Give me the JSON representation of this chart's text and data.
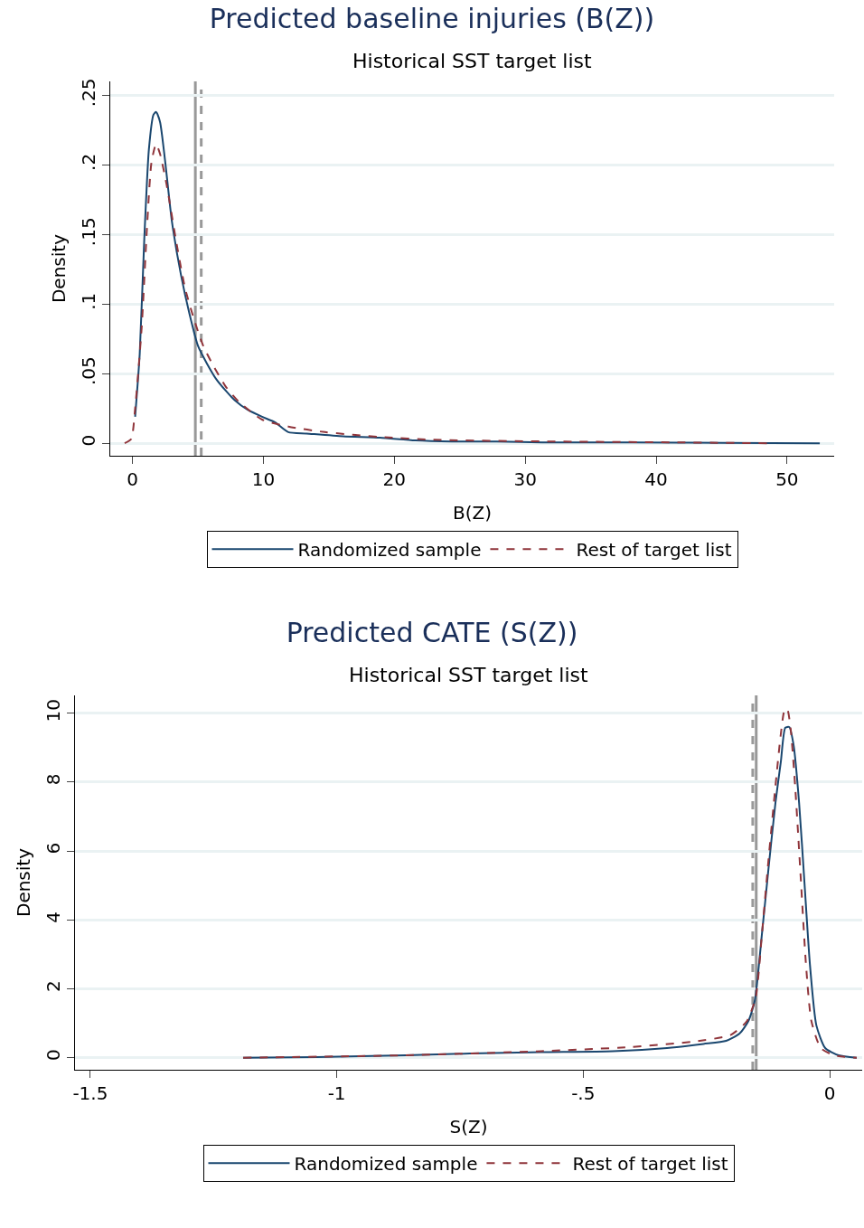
{
  "chart_data": [
    {
      "type": "line",
      "title": "Predicted baseline injuries (B(Z))",
      "subtitle": "Historical SST target list",
      "xlabel": "B(Z)",
      "ylabel": "Density",
      "xlim": [
        -1.7,
        53.6
      ],
      "xticks": [
        0,
        10,
        20,
        30,
        40,
        50
      ],
      "ylim": [
        -0.009,
        0.26
      ],
      "yticks": [
        {
          "value": 0,
          "label": "0"
        },
        {
          "value": 0.05,
          "label": ".05"
        },
        {
          "value": 0.1,
          "label": ".1"
        },
        {
          "value": 0.15,
          "label": ".15"
        },
        {
          "value": 0.2,
          "label": ".2"
        },
        {
          "value": 0.25,
          "label": ".25"
        }
      ],
      "grid": "y",
      "legend": "bottom",
      "marker": "none",
      "ref_lines": [
        {
          "axis": "x",
          "value": 4.8,
          "color": "#999999",
          "line_style": "solid"
        },
        {
          "axis": "x",
          "value": 5.25,
          "color": "#999999",
          "line_style": "dashed"
        }
      ],
      "series": [
        {
          "name": "Randomized sample",
          "color": "#1a476f",
          "line_style": "solid",
          "x": [
            0.2,
            0.55,
            0.9,
            1.25,
            1.6,
            1.8,
            2.1,
            2.5,
            3.0,
            3.7,
            4.35,
            5.0,
            5.7,
            6.4,
            7.1,
            7.8,
            8.8,
            9.9,
            10.9,
            11.9,
            13.3,
            16.1,
            18.9,
            21.6,
            24.4,
            27.8,
            31.3,
            38.2,
            45.1,
            52.5
          ],
          "values": [
            0.019,
            0.064,
            0.147,
            0.211,
            0.236,
            0.238,
            0.231,
            0.202,
            0.16,
            0.121,
            0.093,
            0.07,
            0.057,
            0.046,
            0.038,
            0.031,
            0.024,
            0.019,
            0.015,
            0.008,
            0.007,
            0.005,
            0.004,
            0.002,
            0.0013,
            0.0013,
            0.0006,
            0.0006,
            0.0003,
            0
          ]
        },
        {
          "name": "Rest of target list",
          "color": "#90353b",
          "line_style": "dashed",
          "x": [
            -0.6,
            -0.1,
            0.2,
            0.7,
            1.1,
            1.45,
            1.8,
            2.1,
            2.6,
            3.3,
            4.0,
            4.7,
            5.4,
            6.1,
            7.1,
            8.1,
            9.9,
            11.9,
            14.7,
            18.9,
            23,
            31.3,
            41.6,
            48.5
          ],
          "values": [
            0,
            0.003,
            0.025,
            0.083,
            0.154,
            0.202,
            0.215,
            0.208,
            0.186,
            0.147,
            0.112,
            0.089,
            0.07,
            0.057,
            0.041,
            0.03,
            0.017,
            0.012,
            0.008,
            0.0045,
            0.0025,
            0.0013,
            0.0006,
            0
          ]
        }
      ]
    },
    {
      "type": "line",
      "title": "Predicted CATE (S(Z))",
      "subtitle": "Historical SST target list",
      "xlabel": "S(Z)",
      "ylabel": "Density",
      "xlim": [
        -1.531,
        0.066
      ],
      "xticks": [
        {
          "value": -1.5,
          "label": "-1.5"
        },
        {
          "value": -1,
          "label": "-1"
        },
        {
          "value": -0.5,
          "label": "-.5"
        },
        {
          "value": 0,
          "label": "0"
        }
      ],
      "ylim": [
        -0.35,
        10.52
      ],
      "yticks": [
        0,
        2,
        4,
        6,
        8,
        10
      ],
      "grid": "y",
      "legend": "bottom",
      "marker": "none",
      "ref_lines": [
        {
          "axis": "x",
          "value": -0.156,
          "color": "#999999",
          "line_style": "dashed"
        },
        {
          "axis": "x",
          "value": -0.149,
          "color": "#999999",
          "line_style": "solid"
        }
      ],
      "series": [
        {
          "name": "Randomized sample",
          "color": "#1a476f",
          "line_style": "solid",
          "x": [
            -1.19,
            -1.04,
            -0.86,
            -0.73,
            -0.585,
            -0.44,
            -0.33,
            -0.256,
            -0.21,
            -0.183,
            -0.165,
            -0.152,
            -0.137,
            -0.124,
            -0.11,
            -0.099,
            -0.09,
            -0.082,
            -0.073,
            -0.062,
            -0.051,
            -0.04,
            -0.027,
            -0.009,
            0.018,
            0.055
          ],
          "values": [
            0,
            0.02,
            0.07,
            0.12,
            0.16,
            0.19,
            0.28,
            0.4,
            0.49,
            0.7,
            1.06,
            1.65,
            3.65,
            5.5,
            7.4,
            8.6,
            9.58,
            9.6,
            9.06,
            7.4,
            5.06,
            2.7,
            0.94,
            0.28,
            0.07,
            0
          ]
        },
        {
          "name": "Rest of target list",
          "color": "#90353b",
          "line_style": "dashed",
          "x": [
            -1.19,
            -0.86,
            -0.585,
            -0.403,
            -0.275,
            -0.201,
            -0.168,
            -0.15,
            -0.137,
            -0.124,
            -0.11,
            -0.099,
            -0.091,
            -0.086,
            -0.079,
            -0.07,
            -0.059,
            -0.048,
            -0.037,
            -0.018,
            0.009,
            0.055
          ],
          "values": [
            0,
            0.07,
            0.19,
            0.31,
            0.47,
            0.66,
            1.06,
            1.76,
            3.65,
            5.76,
            7.88,
            9.41,
            10.12,
            10.12,
            9.53,
            7.88,
            5.3,
            2.7,
            1.06,
            0.28,
            0.07,
            0
          ]
        }
      ]
    }
  ]
}
